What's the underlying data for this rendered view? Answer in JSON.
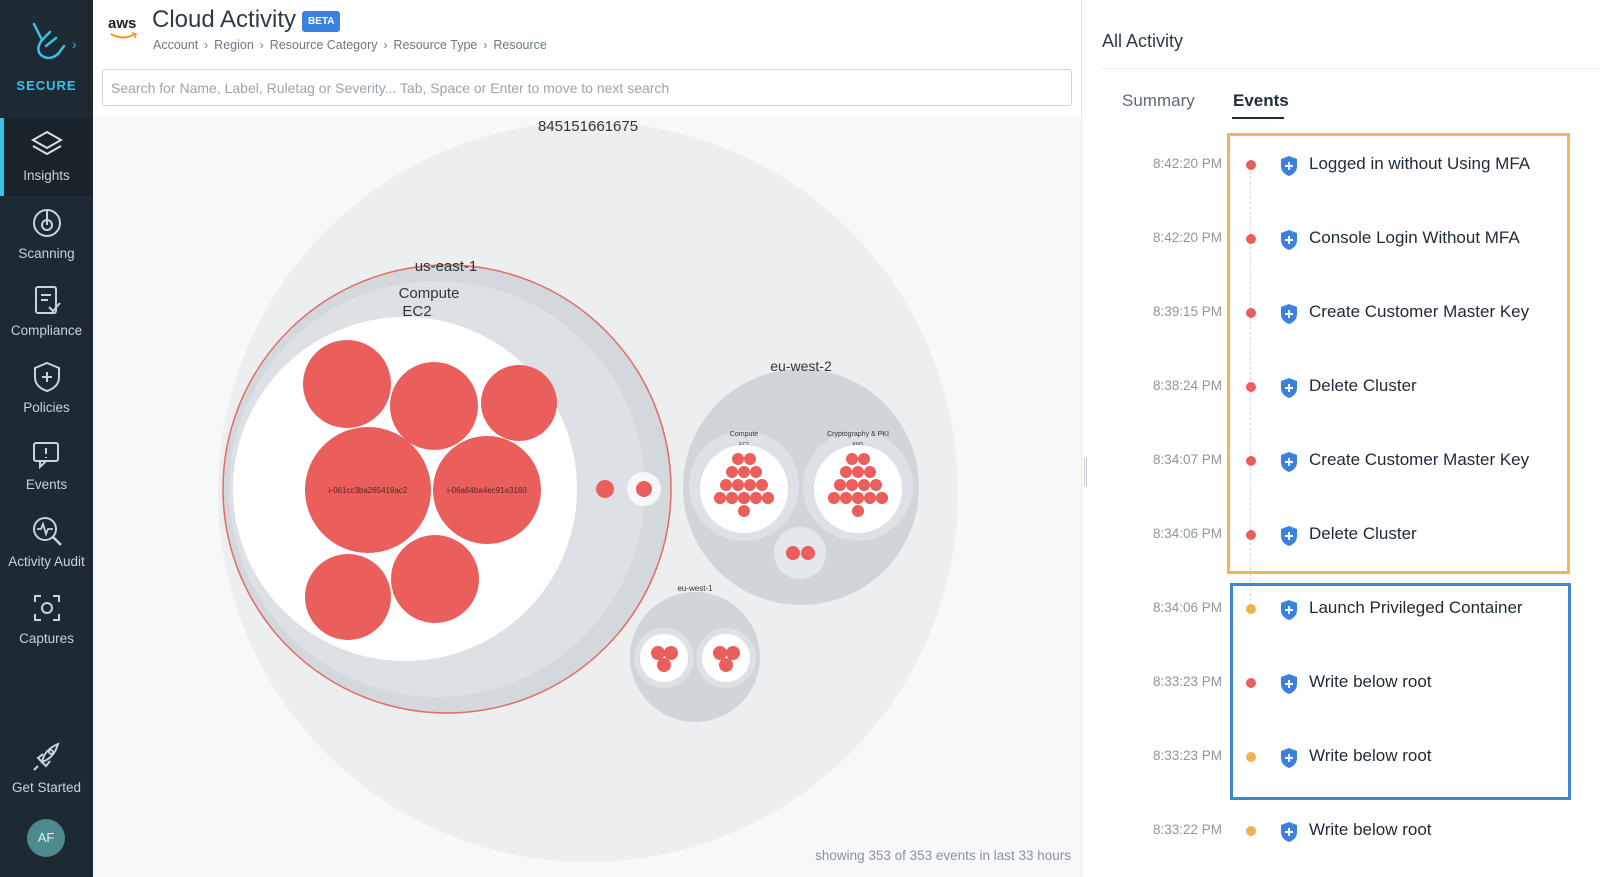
{
  "sidebar": {
    "brand_label": "SECURE",
    "items": [
      {
        "label": "Insights",
        "icon": "layers-icon"
      },
      {
        "label": "Scanning",
        "icon": "gauge-icon"
      },
      {
        "label": "Compliance",
        "icon": "clipboard-icon"
      },
      {
        "label": "Policies",
        "icon": "shield-icon"
      },
      {
        "label": "Events",
        "icon": "chat-icon"
      },
      {
        "label": "Activity Audit",
        "icon": "magnify-pulse-icon"
      },
      {
        "label": "Captures",
        "icon": "capture-icon"
      }
    ],
    "get_started": "Get Started",
    "avatar": "AF"
  },
  "header": {
    "logo_text": "aws",
    "title": "Cloud Activity",
    "badge": "BETA",
    "breadcrumb": [
      "Account",
      "Region",
      "Resource Category",
      "Resource Type",
      "Resource"
    ]
  },
  "search": {
    "placeholder": "Search for Name, Label, Ruletag or Severity... Tab, Space or Enter to move to next search",
    "value": ""
  },
  "chart": {
    "account_label": "845151661675",
    "regions": [
      {
        "name": "us-east-1",
        "category": "Compute",
        "type": "EC2",
        "resources": [
          "i-061cc3ba265419ac2",
          "i-06a64ba4ec91a3160"
        ]
      },
      {
        "name": "eu-west-2",
        "categories": [
          "Compute",
          "Cryptography & PKI"
        ],
        "types": [
          "EC2",
          "KMS"
        ]
      },
      {
        "name": "eu-west-1"
      }
    ],
    "footer": "showing 353 of 353 events in last 33 hours"
  },
  "colors": {
    "high": "#ea5f5b",
    "medium": "#f2b14e",
    "accent": "#39c2e4",
    "highlight_orange": "#f5b35c",
    "highlight_blue": "#3f84d6"
  },
  "panel": {
    "title": "All Activity",
    "tabs": [
      "Summary",
      "Events"
    ],
    "active_tab": "Events",
    "events": [
      {
        "time": "8:42:20 PM",
        "name": "Logged in without Using MFA",
        "severity": "high"
      },
      {
        "time": "8:42:20 PM",
        "name": "Console Login Without MFA",
        "severity": "high"
      },
      {
        "time": "8:39:15 PM",
        "name": "Create Customer Master Key",
        "severity": "high"
      },
      {
        "time": "8:38:24 PM",
        "name": "Delete Cluster",
        "severity": "high"
      },
      {
        "time": "8:34:07 PM",
        "name": "Create Customer Master Key",
        "severity": "high"
      },
      {
        "time": "8:34:06 PM",
        "name": "Delete Cluster",
        "severity": "high"
      },
      {
        "time": "8:34:06 PM",
        "name": "Launch Privileged Container",
        "severity": "medium"
      },
      {
        "time": "8:33:23 PM",
        "name": "Write below root",
        "severity": "high"
      },
      {
        "time": "8:33:23 PM",
        "name": "Write below root",
        "severity": "medium"
      },
      {
        "time": "8:33:22 PM",
        "name": "Write below root",
        "severity": "medium"
      }
    ]
  }
}
